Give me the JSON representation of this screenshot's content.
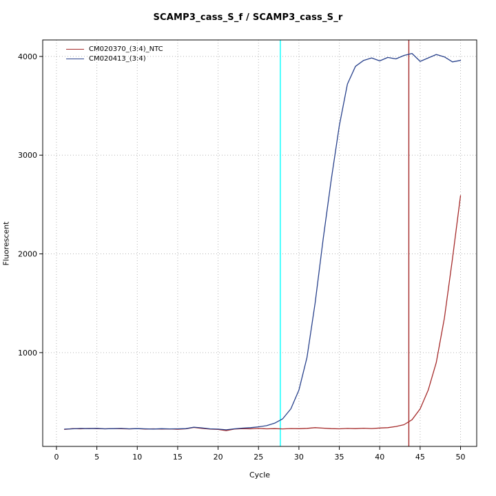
{
  "chart_data": {
    "type": "line",
    "title": "SCAMP3_cass_S_f / SCAMP3_cass_S_r",
    "xlabel": "Cycle",
    "ylabel": "Fluorescent",
    "x_ticks": [
      0,
      5,
      10,
      15,
      20,
      25,
      30,
      35,
      40,
      45,
      50
    ],
    "y_ticks": [
      1000,
      2000,
      3000,
      4000
    ],
    "xlim": [
      -1.7,
      52
    ],
    "ylim": [
      50,
      4167
    ],
    "grid": true,
    "grid_style": "dotted",
    "legend_position": "top-left",
    "x": [
      1,
      2,
      3,
      4,
      5,
      6,
      7,
      8,
      9,
      10,
      11,
      12,
      13,
      14,
      15,
      16,
      17,
      18,
      19,
      20,
      21,
      22,
      23,
      24,
      25,
      26,
      27,
      28,
      29,
      30,
      31,
      32,
      33,
      34,
      35,
      36,
      37,
      38,
      39,
      40,
      41,
      42,
      43,
      44,
      45,
      46,
      47,
      48,
      49,
      50
    ],
    "series": [
      {
        "name": "CM020370_(3:4)_NTC",
        "color": "#a52a2a",
        "values": [
          222,
          230,
          228,
          232,
          230,
          228,
          231,
          229,
          227,
          230,
          226,
          228,
          225,
          227,
          224,
          228,
          242,
          232,
          226,
          222,
          210,
          225,
          230,
          228,
          232,
          228,
          230,
          227,
          231,
          229,
          233,
          240,
          235,
          230,
          228,
          232,
          230,
          234,
          231,
          236,
          240,
          252,
          270,
          320,
          430,
          620,
          900,
          1350,
          1950,
          2590
        ]
      },
      {
        "name": "CM020413_(3:4)",
        "color": "#27408b",
        "values": [
          225,
          228,
          232,
          230,
          233,
          228,
          230,
          232,
          228,
          230,
          228,
          226,
          229,
          227,
          228,
          230,
          245,
          238,
          228,
          225,
          218,
          228,
          235,
          240,
          248,
          260,
          285,
          330,
          430,
          620,
          950,
          1500,
          2150,
          2750,
          3300,
          3720,
          3900,
          3960,
          3985,
          3955,
          3990,
          3975,
          4010,
          4030,
          3950,
          3985,
          4020,
          3995,
          3945,
          3960
        ]
      }
    ],
    "threshold_lines": [
      {
        "x": 27.7,
        "color": "#00ffff",
        "name": "ct-line-cyan"
      },
      {
        "x": 43.6,
        "color": "#a52a2a",
        "name": "ct-line-red"
      }
    ],
    "legend": [
      {
        "label": "CM020370_(3:4)_NTC"
      },
      {
        "label": "CM020413_(3:4)"
      }
    ]
  }
}
